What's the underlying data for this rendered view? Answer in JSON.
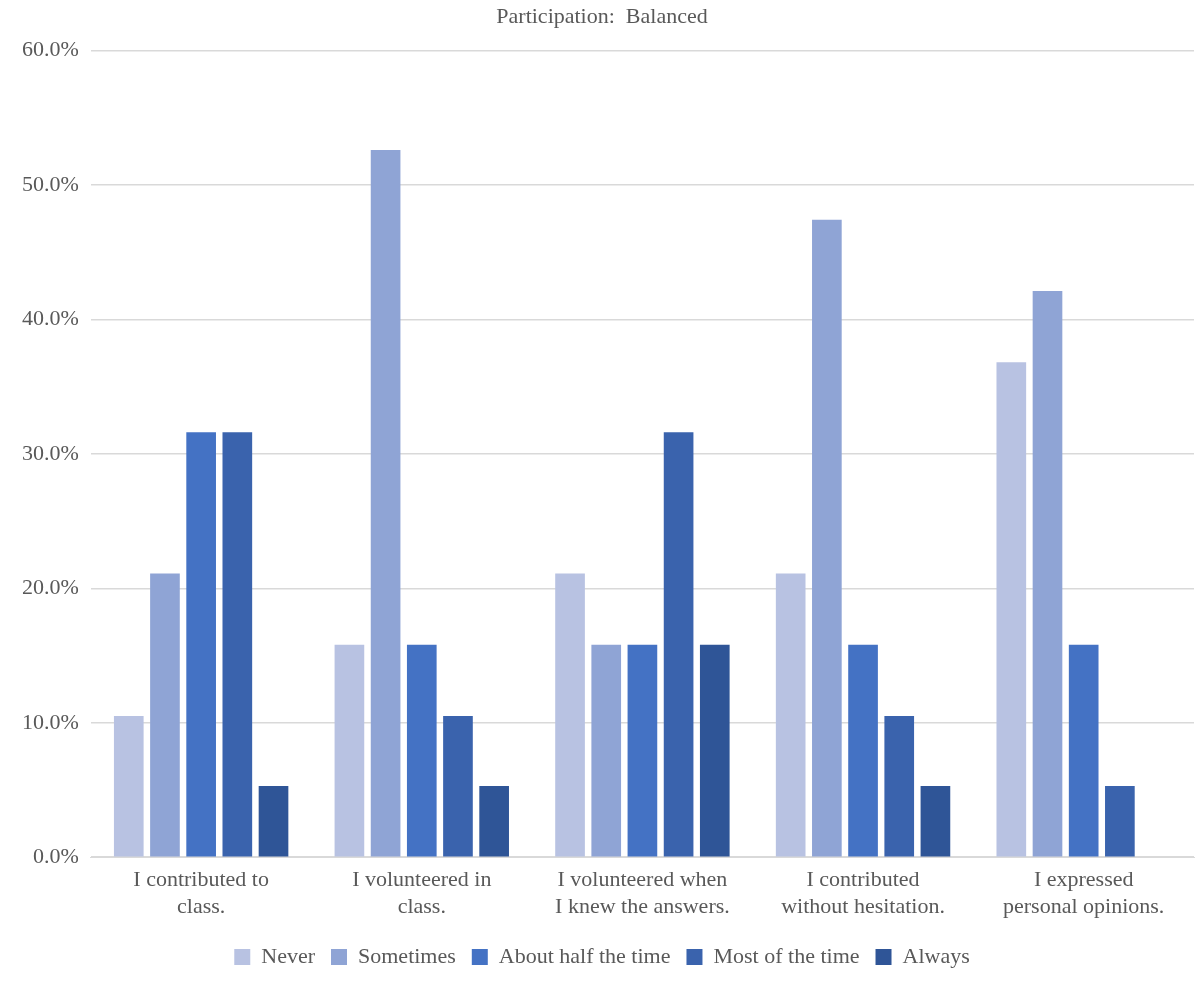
{
  "chart_data": {
    "type": "bar",
    "title": "Participation:  Balanced",
    "categories": [
      "I contributed to class.",
      "I volunteered in class.",
      "I volunteered when I knew the answers.",
      "I contributed without hesitation.",
      "I expressed personal opinions."
    ],
    "series": [
      {
        "name": "Never",
        "color": "#b8c2e2",
        "values": [
          10.5,
          15.8,
          21.1,
          21.1,
          36.8
        ]
      },
      {
        "name": "Sometimes",
        "color": "#8fa4d5",
        "values": [
          21.1,
          52.6,
          15.8,
          47.4,
          42.1
        ]
      },
      {
        "name": "About half the time",
        "color": "#4472c4",
        "values": [
          31.6,
          15.8,
          15.8,
          15.8,
          15.8
        ]
      },
      {
        "name": "Most of the time",
        "color": "#3a63ad",
        "values": [
          31.6,
          10.5,
          31.6,
          10.5,
          5.3
        ]
      },
      {
        "name": "Always",
        "color": "#2f5597",
        "values": [
          5.3,
          5.3,
          15.8,
          5.3,
          0
        ]
      }
    ],
    "ylim": [
      0,
      60
    ],
    "yticks": [
      {
        "value": 0,
        "label": "0.0%"
      },
      {
        "value": 10,
        "label": "10.0%"
      },
      {
        "value": 20,
        "label": "20.0%"
      },
      {
        "value": 30,
        "label": "30.0%"
      },
      {
        "value": 40,
        "label": "40.0%"
      },
      {
        "value": 50,
        "label": "50.0%"
      },
      {
        "value": 60,
        "label": "60.0%"
      }
    ],
    "grid": "y",
    "legend": "bottom"
  }
}
